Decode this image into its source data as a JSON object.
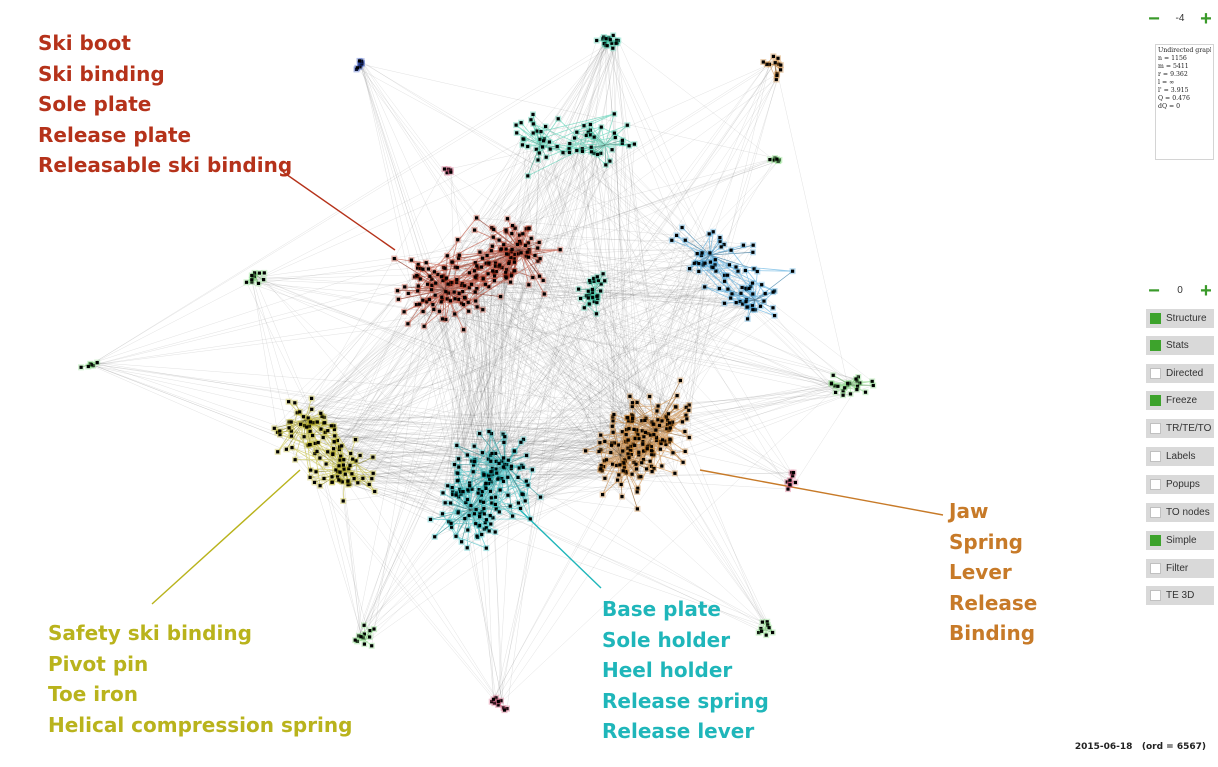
{
  "colors": {
    "red": "#b5321a",
    "yellow": "#b9b31c",
    "cyan": "#1fb6ba",
    "orange": "#c77a28",
    "lightblue": "#3a9ed8",
    "teal": "#38c9a6",
    "lightgreen": "#7fd67a",
    "navy": "#2747b8",
    "pink": "#d25a7a",
    "accent_green": "#3da32c"
  },
  "labels": {
    "red": [
      "Ski boot",
      "Ski binding",
      "Sole plate",
      "Release plate",
      "Releasable ski binding"
    ],
    "yellow": [
      "Safety ski binding",
      "Pivot pin",
      "Toe iron",
      "Helical compression spring"
    ],
    "cyan": [
      "Base plate",
      "Sole holder",
      "Heel holder",
      "Release spring",
      "Release lever"
    ],
    "orange": [
      "Jaw",
      "Spring",
      "Lever",
      "Release",
      "Binding"
    ]
  },
  "controls": {
    "top_stepper": {
      "minus": "−",
      "value": "-4",
      "plus": "+"
    },
    "stats": [
      "Undirected graph",
      "n = 1156",
      "m = 5411",
      "r = 9.362",
      "l = ∞",
      "l' = 3.915",
      "Q = 0.476",
      "dQ = 0"
    ],
    "mid_stepper": {
      "minus": "−",
      "value": "0",
      "plus": "+"
    },
    "toggles": [
      {
        "label": "Structure",
        "checked": true
      },
      {
        "label": "Stats",
        "checked": true
      },
      {
        "label": "Directed",
        "checked": false
      },
      {
        "label": "Freeze",
        "checked": true
      },
      {
        "label": "TR/TE/TO",
        "checked": false
      },
      {
        "label": "Labels",
        "checked": false
      },
      {
        "label": "Popups",
        "checked": false
      },
      {
        "label": "TO nodes",
        "checked": false
      },
      {
        "label": "Simple",
        "checked": true
      },
      {
        "label": "Filter",
        "checked": false
      },
      {
        "label": "TE 3D",
        "checked": false
      }
    ]
  },
  "footer": "2015-06-18   (ord = 6567)"
}
